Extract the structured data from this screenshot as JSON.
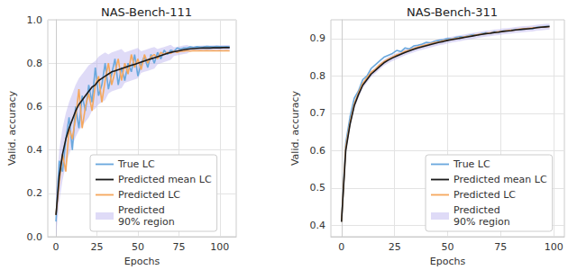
{
  "chart_data": [
    {
      "type": "line",
      "title": "NAS-Bench-111",
      "xlabel": "Epochs",
      "ylabel": "Valid. accuracy",
      "xlim": [
        -5,
        110
      ],
      "xticks": [
        0,
        25,
        50,
        75,
        100
      ],
      "ylim": [
        0,
        1.0
      ],
      "yticks": [
        {
          "value": 0,
          "label": "0.0"
        },
        0.2,
        0.4,
        0.6,
        0.8,
        {
          "value": 1.0,
          "label": "1.0"
        }
      ],
      "grid": true,
      "legend": "lower right",
      "x": [
        0,
        2,
        4,
        6,
        8,
        10,
        12,
        14,
        16,
        18,
        20,
        22,
        24,
        26,
        28,
        30,
        32,
        34,
        36,
        38,
        40,
        42,
        44,
        46,
        48,
        50,
        52,
        54,
        56,
        58,
        60,
        62,
        64,
        66,
        68,
        70,
        72,
        74,
        76,
        78,
        80,
        82,
        84,
        86,
        88,
        90,
        92,
        94,
        96,
        98,
        100,
        102,
        104,
        106
      ],
      "series": [
        {
          "name": "True LC",
          "color": "#6aa8dd",
          "line_style": "solid",
          "values": [
            0.07,
            0.35,
            0.3,
            0.45,
            0.55,
            0.4,
            0.6,
            0.5,
            0.65,
            0.58,
            0.7,
            0.62,
            0.78,
            0.65,
            0.7,
            0.8,
            0.68,
            0.75,
            0.82,
            0.7,
            0.78,
            0.72,
            0.8,
            0.76,
            0.84,
            0.74,
            0.8,
            0.83,
            0.78,
            0.84,
            0.8,
            0.85,
            0.82,
            0.86,
            0.84,
            0.86,
            0.855,
            0.87,
            0.865,
            0.87,
            0.87,
            0.875,
            0.872,
            0.876,
            0.874,
            0.875,
            0.877,
            0.876,
            0.875,
            0.877,
            0.876,
            0.875,
            0.876,
            0.875
          ]
        },
        {
          "name": "Predicted mean LC",
          "color": "#1a1a1a",
          "line_style": "solid",
          "values": [
            0.1,
            0.28,
            0.38,
            0.45,
            0.5,
            0.54,
            0.58,
            0.61,
            0.63,
            0.65,
            0.67,
            0.69,
            0.7,
            0.72,
            0.73,
            0.74,
            0.75,
            0.76,
            0.765,
            0.77,
            0.775,
            0.78,
            0.785,
            0.79,
            0.795,
            0.8,
            0.805,
            0.81,
            0.815,
            0.82,
            0.825,
            0.83,
            0.835,
            0.84,
            0.845,
            0.85,
            0.853,
            0.856,
            0.859,
            0.862,
            0.864,
            0.866,
            0.867,
            0.868,
            0.869,
            0.87,
            0.87,
            0.87,
            0.871,
            0.871,
            0.871,
            0.872,
            0.872,
            0.872
          ]
        },
        {
          "name": "Predicted LC",
          "color": "#f5a85e",
          "line_style": "solid",
          "values": [
            0.1,
            0.25,
            0.38,
            0.3,
            0.5,
            0.45,
            0.55,
            0.68,
            0.5,
            0.6,
            0.66,
            0.58,
            0.7,
            0.74,
            0.62,
            0.72,
            0.8,
            0.7,
            0.76,
            0.82,
            0.72,
            0.8,
            0.75,
            0.84,
            0.78,
            0.82,
            0.77,
            0.84,
            0.8,
            0.83,
            0.84,
            0.82,
            0.85,
            0.84,
            0.85,
            0.845,
            0.855,
            0.85,
            0.855,
            0.855,
            0.858,
            0.856,
            0.858,
            0.857,
            0.858,
            0.857,
            0.858,
            0.857,
            0.858,
            0.857,
            0.858,
            0.857,
            0.858,
            0.857
          ]
        }
      ],
      "band": {
        "name": "Predicted\n90% region",
        "color": "#b9b0ee",
        "lower": [
          0.0,
          0.16,
          0.26,
          0.33,
          0.38,
          0.42,
          0.46,
          0.49,
          0.51,
          0.53,
          0.55,
          0.58,
          0.59,
          0.61,
          0.62,
          0.63,
          0.66,
          0.67,
          0.675,
          0.68,
          0.685,
          0.71,
          0.715,
          0.72,
          0.725,
          0.73,
          0.755,
          0.76,
          0.765,
          0.77,
          0.775,
          0.795,
          0.8,
          0.805,
          0.81,
          0.815,
          0.833,
          0.836,
          0.839,
          0.842,
          0.844,
          0.854,
          0.855,
          0.856,
          0.857,
          0.858,
          0.858,
          0.858,
          0.859,
          0.859,
          0.859,
          0.86,
          0.86,
          0.86
        ],
        "upper": [
          0.2,
          0.4,
          0.5,
          0.57,
          0.62,
          0.66,
          0.7,
          0.73,
          0.75,
          0.77,
          0.79,
          0.8,
          0.81,
          0.83,
          0.84,
          0.85,
          0.84,
          0.85,
          0.855,
          0.86,
          0.865,
          0.85,
          0.855,
          0.86,
          0.865,
          0.87,
          0.855,
          0.86,
          0.865,
          0.87,
          0.875,
          0.865,
          0.87,
          0.875,
          0.88,
          0.885,
          0.873,
          0.876,
          0.879,
          0.882,
          0.884,
          0.878,
          0.879,
          0.88,
          0.881,
          0.882,
          0.882,
          0.882,
          0.883,
          0.883,
          0.883,
          0.884,
          0.884,
          0.884
        ]
      }
    },
    {
      "type": "line",
      "title": "NAS-Bench-311",
      "xlabel": "Epochs",
      "ylabel": "Valid. accuracy",
      "xlim": [
        -5,
        105
      ],
      "xticks": [
        0,
        25,
        50,
        75,
        100
      ],
      "ylim": [
        0.37,
        0.95
      ],
      "yticks": [
        0.4,
        0.5,
        0.6,
        0.7,
        0.8,
        0.9
      ],
      "grid": true,
      "legend": "lower right",
      "x": [
        0,
        2,
        4,
        6,
        8,
        10,
        12,
        14,
        16,
        18,
        20,
        22,
        24,
        26,
        28,
        30,
        32,
        34,
        36,
        38,
        40,
        42,
        44,
        46,
        48,
        50,
        52,
        54,
        56,
        58,
        60,
        62,
        64,
        66,
        68,
        70,
        72,
        74,
        76,
        78,
        80,
        82,
        84,
        86,
        88,
        90,
        92,
        94,
        96,
        98
      ],
      "series": [
        {
          "name": "True LC",
          "color": "#6aa8dd",
          "line_style": "solid",
          "values": [
            0.41,
            0.62,
            0.69,
            0.74,
            0.76,
            0.79,
            0.8,
            0.82,
            0.83,
            0.84,
            0.85,
            0.855,
            0.86,
            0.868,
            0.865,
            0.875,
            0.872,
            0.88,
            0.882,
            0.885,
            0.89,
            0.888,
            0.893,
            0.895,
            0.897,
            0.9,
            0.899,
            0.903,
            0.905,
            0.904,
            0.908,
            0.91,
            0.909,
            0.913,
            0.915,
            0.914,
            0.918,
            0.917,
            0.92,
            0.921,
            0.922,
            0.924,
            0.923,
            0.926,
            0.927,
            0.926,
            0.93,
            0.931,
            0.932,
            0.933
          ]
        },
        {
          "name": "Predicted mean LC",
          "color": "#1a1a1a",
          "line_style": "solid",
          "values": [
            0.41,
            0.6,
            0.67,
            0.72,
            0.75,
            0.775,
            0.79,
            0.805,
            0.815,
            0.825,
            0.835,
            0.842,
            0.848,
            0.853,
            0.858,
            0.863,
            0.867,
            0.871,
            0.875,
            0.878,
            0.881,
            0.884,
            0.887,
            0.89,
            0.892,
            0.895,
            0.897,
            0.899,
            0.901,
            0.903,
            0.905,
            0.907,
            0.909,
            0.911,
            0.913,
            0.914,
            0.916,
            0.917,
            0.919,
            0.92,
            0.921,
            0.923,
            0.924,
            0.925,
            0.926,
            0.927,
            0.929,
            0.93,
            0.931,
            0.932
          ]
        },
        {
          "name": "Predicted LC",
          "color": "#f5a85e",
          "line_style": "solid",
          "values": [
            0.41,
            0.61,
            0.675,
            0.725,
            0.755,
            0.78,
            0.795,
            0.81,
            0.818,
            0.83,
            0.838,
            0.845,
            0.85,
            0.856,
            0.86,
            0.866,
            0.869,
            0.873,
            0.877,
            0.88,
            0.883,
            0.886,
            0.889,
            0.891,
            0.894,
            0.896,
            0.898,
            0.9,
            0.902,
            0.904,
            0.906,
            0.908,
            0.91,
            0.912,
            0.913,
            0.915,
            0.916,
            0.918,
            0.919,
            0.921,
            0.922,
            0.923,
            0.925,
            0.926,
            0.927,
            0.928,
            0.929,
            0.93,
            0.931,
            0.932
          ]
        }
      ],
      "band": {
        "name": "Predicted\n90% region",
        "color": "#b9b0ee",
        "lower": [
          0.402,
          0.592,
          0.662,
          0.712,
          0.742,
          0.767,
          0.782,
          0.797,
          0.807,
          0.817,
          0.827,
          0.834,
          0.84,
          0.845,
          0.85,
          0.855,
          0.859,
          0.863,
          0.867,
          0.87,
          0.873,
          0.876,
          0.879,
          0.882,
          0.884,
          0.887,
          0.889,
          0.891,
          0.893,
          0.895,
          0.897,
          0.899,
          0.901,
          0.903,
          0.905,
          0.906,
          0.908,
          0.909,
          0.911,
          0.912,
          0.913,
          0.915,
          0.916,
          0.917,
          0.918,
          0.919,
          0.921,
          0.922,
          0.923,
          0.924
        ],
        "upper": [
          0.418,
          0.608,
          0.678,
          0.728,
          0.758,
          0.783,
          0.798,
          0.813,
          0.823,
          0.833,
          0.843,
          0.85,
          0.856,
          0.861,
          0.866,
          0.871,
          0.875,
          0.879,
          0.883,
          0.886,
          0.889,
          0.892,
          0.895,
          0.898,
          0.9,
          0.903,
          0.905,
          0.907,
          0.909,
          0.911,
          0.913,
          0.915,
          0.917,
          0.919,
          0.921,
          0.922,
          0.924,
          0.925,
          0.927,
          0.928,
          0.929,
          0.931,
          0.932,
          0.933,
          0.934,
          0.935,
          0.937,
          0.938,
          0.939,
          0.94
        ]
      }
    }
  ]
}
